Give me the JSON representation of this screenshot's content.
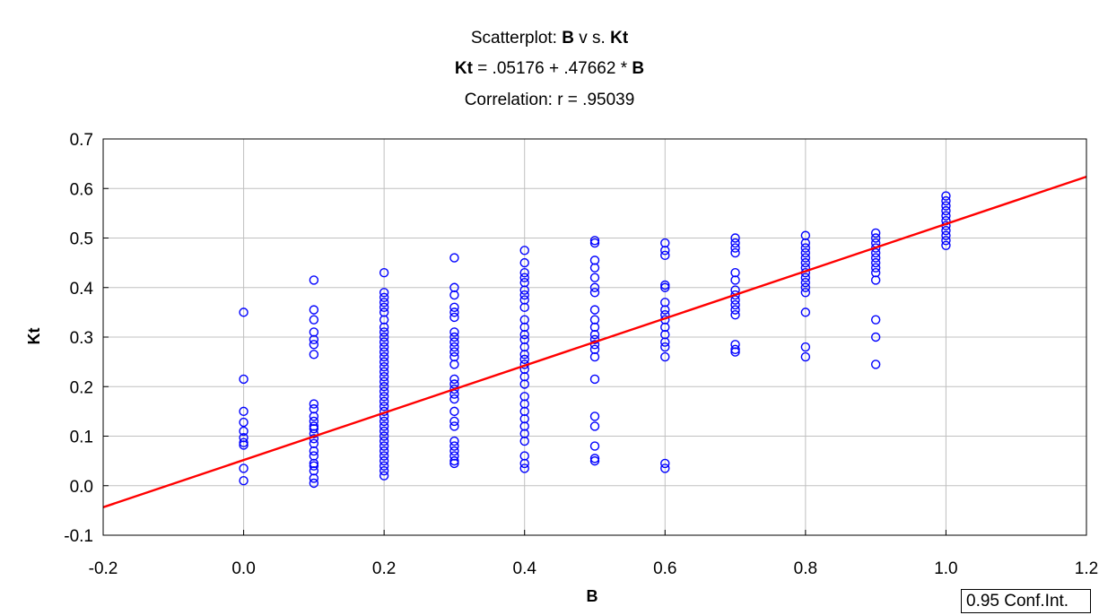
{
  "title": {
    "line1_prefix": "Scatterplot: ",
    "line1_var_x": "B",
    "line1_mid": " v s. ",
    "line1_var_y": "Kt",
    "line2_var_y": "Kt",
    "line2_rest": " = .05176 + .47662 * ",
    "line2_var_x": "B",
    "line3": "Correlation: r = .95039"
  },
  "legend_box": "0.95 Conf.Int.",
  "colors": {
    "points": "#0000ff",
    "fit_line": "#ff0000",
    "grid": "#c0c0c0",
    "axis": "#000000"
  },
  "chart_data": {
    "type": "scatter",
    "title": "Scatterplot: B v s. Kt",
    "subtitle": [
      "Kt = .05176 + .47662 * B",
      "Correlation: r = .95039"
    ],
    "xlabel": "B",
    "ylabel": "Kt",
    "xlim": [
      -0.2,
      1.2
    ],
    "ylim": [
      -0.1,
      0.7
    ],
    "xticks": [
      "-0.2",
      "0.0",
      "0.2",
      "0.4",
      "0.6",
      "0.8",
      "1.0",
      "1.2"
    ],
    "yticks": [
      "-0.1",
      "0.0",
      "0.1",
      "0.2",
      "0.3",
      "0.4",
      "0.5",
      "0.6",
      "0.7"
    ],
    "grid": true,
    "fit": {
      "intercept": 0.05176,
      "slope": 0.47662,
      "r": 0.95039
    },
    "series": [
      {
        "points": [
          [
            0.0,
            0.35
          ],
          [
            0.0,
            0.215
          ],
          [
            0.0,
            0.15
          ],
          [
            0.0,
            0.128
          ],
          [
            0.0,
            0.11
          ],
          [
            0.0,
            0.097
          ],
          [
            0.0,
            0.087
          ],
          [
            0.0,
            0.082
          ],
          [
            0.0,
            0.035
          ],
          [
            0.0,
            0.01
          ],
          [
            0.1,
            0.415
          ],
          [
            0.1,
            0.355
          ],
          [
            0.1,
            0.335
          ],
          [
            0.1,
            0.31
          ],
          [
            0.1,
            0.295
          ],
          [
            0.1,
            0.285
          ],
          [
            0.1,
            0.265
          ],
          [
            0.1,
            0.165
          ],
          [
            0.1,
            0.155
          ],
          [
            0.1,
            0.14
          ],
          [
            0.1,
            0.13
          ],
          [
            0.1,
            0.12
          ],
          [
            0.1,
            0.115
          ],
          [
            0.1,
            0.105
          ],
          [
            0.1,
            0.095
          ],
          [
            0.1,
            0.085
          ],
          [
            0.1,
            0.07
          ],
          [
            0.1,
            0.06
          ],
          [
            0.1,
            0.045
          ],
          [
            0.1,
            0.04
          ],
          [
            0.1,
            0.03
          ],
          [
            0.1,
            0.015
          ],
          [
            0.1,
            0.005
          ],
          [
            0.2,
            0.43
          ],
          [
            0.2,
            0.39
          ],
          [
            0.2,
            0.38
          ],
          [
            0.2,
            0.37
          ],
          [
            0.2,
            0.36
          ],
          [
            0.2,
            0.35
          ],
          [
            0.2,
            0.335
          ],
          [
            0.2,
            0.32
          ],
          [
            0.2,
            0.31
          ],
          [
            0.2,
            0.3
          ],
          [
            0.2,
            0.29
          ],
          [
            0.2,
            0.28
          ],
          [
            0.2,
            0.27
          ],
          [
            0.2,
            0.26
          ],
          [
            0.2,
            0.25
          ],
          [
            0.2,
            0.24
          ],
          [
            0.2,
            0.23
          ],
          [
            0.2,
            0.22
          ],
          [
            0.2,
            0.21
          ],
          [
            0.2,
            0.2
          ],
          [
            0.2,
            0.19
          ],
          [
            0.2,
            0.18
          ],
          [
            0.2,
            0.17
          ],
          [
            0.2,
            0.16
          ],
          [
            0.2,
            0.15
          ],
          [
            0.2,
            0.14
          ],
          [
            0.2,
            0.13
          ],
          [
            0.2,
            0.12
          ],
          [
            0.2,
            0.11
          ],
          [
            0.2,
            0.1
          ],
          [
            0.2,
            0.09
          ],
          [
            0.2,
            0.08
          ],
          [
            0.2,
            0.07
          ],
          [
            0.2,
            0.06
          ],
          [
            0.2,
            0.05
          ],
          [
            0.2,
            0.04
          ],
          [
            0.2,
            0.03
          ],
          [
            0.2,
            0.02
          ],
          [
            0.3,
            0.46
          ],
          [
            0.3,
            0.4
          ],
          [
            0.3,
            0.385
          ],
          [
            0.3,
            0.36
          ],
          [
            0.3,
            0.35
          ],
          [
            0.3,
            0.34
          ],
          [
            0.3,
            0.31
          ],
          [
            0.3,
            0.3
          ],
          [
            0.3,
            0.29
          ],
          [
            0.3,
            0.28
          ],
          [
            0.3,
            0.27
          ],
          [
            0.3,
            0.26
          ],
          [
            0.3,
            0.245
          ],
          [
            0.3,
            0.215
          ],
          [
            0.3,
            0.205
          ],
          [
            0.3,
            0.195
          ],
          [
            0.3,
            0.185
          ],
          [
            0.3,
            0.175
          ],
          [
            0.3,
            0.15
          ],
          [
            0.3,
            0.13
          ],
          [
            0.3,
            0.12
          ],
          [
            0.3,
            0.09
          ],
          [
            0.3,
            0.08
          ],
          [
            0.3,
            0.07
          ],
          [
            0.3,
            0.06
          ],
          [
            0.3,
            0.05
          ],
          [
            0.3,
            0.045
          ],
          [
            0.4,
            0.475
          ],
          [
            0.4,
            0.45
          ],
          [
            0.4,
            0.43
          ],
          [
            0.4,
            0.42
          ],
          [
            0.4,
            0.41
          ],
          [
            0.4,
            0.395
          ],
          [
            0.4,
            0.385
          ],
          [
            0.4,
            0.375
          ],
          [
            0.4,
            0.36
          ],
          [
            0.4,
            0.335
          ],
          [
            0.4,
            0.32
          ],
          [
            0.4,
            0.305
          ],
          [
            0.4,
            0.295
          ],
          [
            0.4,
            0.28
          ],
          [
            0.4,
            0.265
          ],
          [
            0.4,
            0.255
          ],
          [
            0.4,
            0.245
          ],
          [
            0.4,
            0.235
          ],
          [
            0.4,
            0.22
          ],
          [
            0.4,
            0.205
          ],
          [
            0.4,
            0.18
          ],
          [
            0.4,
            0.165
          ],
          [
            0.4,
            0.15
          ],
          [
            0.4,
            0.135
          ],
          [
            0.4,
            0.12
          ],
          [
            0.4,
            0.105
          ],
          [
            0.4,
            0.09
          ],
          [
            0.4,
            0.06
          ],
          [
            0.4,
            0.045
          ],
          [
            0.4,
            0.035
          ],
          [
            0.5,
            0.495
          ],
          [
            0.5,
            0.49
          ],
          [
            0.5,
            0.455
          ],
          [
            0.5,
            0.44
          ],
          [
            0.5,
            0.42
          ],
          [
            0.5,
            0.4
          ],
          [
            0.5,
            0.39
          ],
          [
            0.5,
            0.355
          ],
          [
            0.5,
            0.335
          ],
          [
            0.5,
            0.32
          ],
          [
            0.5,
            0.305
          ],
          [
            0.5,
            0.295
          ],
          [
            0.5,
            0.285
          ],
          [
            0.5,
            0.275
          ],
          [
            0.5,
            0.26
          ],
          [
            0.5,
            0.215
          ],
          [
            0.5,
            0.14
          ],
          [
            0.5,
            0.12
          ],
          [
            0.5,
            0.08
          ],
          [
            0.5,
            0.055
          ],
          [
            0.5,
            0.05
          ],
          [
            0.6,
            0.49
          ],
          [
            0.6,
            0.475
          ],
          [
            0.6,
            0.465
          ],
          [
            0.6,
            0.405
          ],
          [
            0.6,
            0.4
          ],
          [
            0.6,
            0.37
          ],
          [
            0.6,
            0.355
          ],
          [
            0.6,
            0.345
          ],
          [
            0.6,
            0.335
          ],
          [
            0.6,
            0.32
          ],
          [
            0.6,
            0.305
          ],
          [
            0.6,
            0.29
          ],
          [
            0.6,
            0.28
          ],
          [
            0.6,
            0.26
          ],
          [
            0.6,
            0.045
          ],
          [
            0.6,
            0.035
          ],
          [
            0.7,
            0.5
          ],
          [
            0.7,
            0.49
          ],
          [
            0.7,
            0.48
          ],
          [
            0.7,
            0.47
          ],
          [
            0.7,
            0.43
          ],
          [
            0.7,
            0.415
          ],
          [
            0.7,
            0.395
          ],
          [
            0.7,
            0.385
          ],
          [
            0.7,
            0.375
          ],
          [
            0.7,
            0.365
          ],
          [
            0.7,
            0.355
          ],
          [
            0.7,
            0.345
          ],
          [
            0.7,
            0.285
          ],
          [
            0.7,
            0.275
          ],
          [
            0.7,
            0.27
          ],
          [
            0.8,
            0.505
          ],
          [
            0.8,
            0.49
          ],
          [
            0.8,
            0.48
          ],
          [
            0.8,
            0.47
          ],
          [
            0.8,
            0.46
          ],
          [
            0.8,
            0.45
          ],
          [
            0.8,
            0.44
          ],
          [
            0.8,
            0.43
          ],
          [
            0.8,
            0.42
          ],
          [
            0.8,
            0.41
          ],
          [
            0.8,
            0.4
          ],
          [
            0.8,
            0.39
          ],
          [
            0.8,
            0.35
          ],
          [
            0.8,
            0.28
          ],
          [
            0.8,
            0.26
          ],
          [
            0.9,
            0.51
          ],
          [
            0.9,
            0.5
          ],
          [
            0.9,
            0.49
          ],
          [
            0.9,
            0.48
          ],
          [
            0.9,
            0.47
          ],
          [
            0.9,
            0.46
          ],
          [
            0.9,
            0.45
          ],
          [
            0.9,
            0.44
          ],
          [
            0.9,
            0.43
          ],
          [
            0.9,
            0.415
          ],
          [
            0.9,
            0.335
          ],
          [
            0.9,
            0.3
          ],
          [
            0.9,
            0.245
          ],
          [
            1.0,
            0.585
          ],
          [
            1.0,
            0.575
          ],
          [
            1.0,
            0.565
          ],
          [
            1.0,
            0.555
          ],
          [
            1.0,
            0.545
          ],
          [
            1.0,
            0.535
          ],
          [
            1.0,
            0.525
          ],
          [
            1.0,
            0.515
          ],
          [
            1.0,
            0.505
          ],
          [
            1.0,
            0.495
          ],
          [
            1.0,
            0.485
          ]
        ]
      }
    ]
  }
}
